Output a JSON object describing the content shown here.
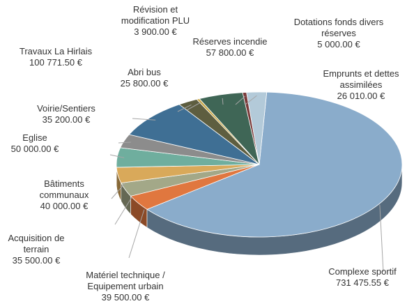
{
  "chart_data": {
    "type": "pie",
    "categories": [
      "Complexe sportif",
      "Matériel technique / Equipement urbain",
      "Acquisition de terrain",
      "Bâtiments communaux",
      "Eglise",
      "Voirie/Sentiers",
      "Travaux La Hirlais",
      "Abri bus",
      "Révision et modification PLU",
      "Réserves incendie",
      "Dotations fonds divers réserves",
      "Emprunts et dettes assimilées"
    ],
    "values": [
      731475.55,
      39500,
      35500,
      40000,
      50000,
      35200,
      100771.5,
      25800,
      3900,
      57800,
      5000,
      26010
    ],
    "value_labels": [
      "731 475.55 €",
      "39 500.00 €",
      "35 500.00 €",
      "40 000.00 €",
      "50 000.00 €",
      "35 200.00 €",
      "100 771.50 €",
      "25 800.00 €",
      "3 900.00 €",
      "57 800.00 €",
      "5 000.00 €",
      "26 010.00 €"
    ],
    "colors": [
      "#8aaccb",
      "#e0773f",
      "#a3a888",
      "#d9a95a",
      "#6fae9e",
      "#8c8c8c",
      "#3f6f94",
      "#5e5e40",
      "#c9a845",
      "#3f6656",
      "#7a3a3a",
      "#b3cad9"
    ]
  }
}
